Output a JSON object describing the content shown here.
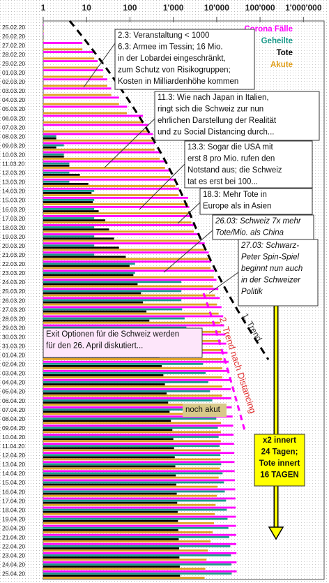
{
  "chart_data": {
    "type": "bar",
    "orientation": "horizontal",
    "log_scale": true,
    "xlim": [
      1,
      3000000
    ],
    "xticks": [
      1,
      10,
      100,
      {
        "value": 1000,
        "label": "1'000"
      },
      {
        "value": 10000,
        "label": "10'000"
      },
      {
        "value": 100000,
        "label": "100'000"
      },
      {
        "value": 1000000,
        "label": "1'000'000"
      }
    ],
    "categories": [
      "25.02.20",
      "26.02.20",
      "27.02.20",
      "28.02.20",
      "29.02.20",
      "01.03.20",
      "02.03.20",
      "03.03.20",
      "04.03.20",
      "05.03.20",
      "06.03.20",
      "07.03.20",
      "08.03.20",
      "09.03.20",
      "10.03.20",
      "11.03.20",
      "12.03.20",
      "13.03.20",
      "14.03.20",
      "15.03.20",
      "16.03.20",
      "17.03.20",
      "18.03.20",
      "19.03.20",
      "20.03.20",
      "21.03.20",
      "22.03.20",
      "23.03.20",
      "24.03.20",
      "25.03.20",
      "26.03.20",
      "27.03.20",
      "28.03.20",
      "29.03.20",
      "30.03.20",
      "31.03.20",
      "01.04.20",
      "02.04.20",
      "03.04.20",
      "04.04.20",
      "05.04.20",
      "06.04.20",
      "07.04.20",
      "08.04.20",
      "09.04.20",
      "10.04.20",
      "11.04.20",
      "12.04.20",
      "13.04.20",
      "14.04.20",
      "15.04.20",
      "16.04.20",
      "17.04.20",
      "18.04.20",
      "19.04.20",
      "20.04.20",
      "21.04.20",
      "22.04.20",
      "23.04.20",
      "24.04.20",
      "25.04.20"
    ],
    "series": [
      {
        "name": "Corona Fälle",
        "color": "#ff00ff",
        "values": [
          1,
          1,
          8,
          15,
          18,
          24,
          30,
          37,
          56,
          86,
          200,
          264,
          337,
          374,
          491,
          652,
          858,
          1125,
          1359,
          2200,
          2330,
          2650,
          3010,
          4075,
          5294,
          6575,
          7474,
          8795,
          9877,
          10897,
          11811,
          12928,
          14076,
          14829,
          15922,
          16605,
          17768,
          18827,
          19606,
          20505,
          21100,
          21657,
          22253,
          23280,
          24051,
          24551,
          25107,
          25415,
          25688,
          25936,
          26336,
          26732,
          27078,
          27404,
          27740,
          27944,
          28063,
          28268,
          28496,
          28677,
          28894
        ]
      },
      {
        "name": "Geheilte",
        "color": "#1a9a8a",
        "values": [
          null,
          null,
          null,
          null,
          null,
          null,
          null,
          null,
          null,
          null,
          1,
          1,
          2,
          3,
          3,
          4,
          4,
          4,
          15,
          15,
          15,
          15,
          15,
          15,
          15,
          15,
          131,
          131,
          1530,
          1530,
          1530,
          1595,
          1823,
          2000,
          2967,
          3400,
          4013,
          4846,
          5549,
          6415,
          7024,
          7915,
          8704,
          9800,
          10600,
          11100,
          11700,
          12100,
          12700,
          13700,
          14700,
          15400,
          16400,
          17100,
          17800,
          18600,
          19500,
          20600,
          21300,
          21800,
          22200
        ]
      },
      {
        "name": "Tote",
        "color": "#000000",
        "values": [
          null,
          null,
          null,
          null,
          null,
          null,
          null,
          null,
          null,
          1,
          1,
          1,
          2,
          2,
          3,
          4,
          7,
          11,
          13,
          14,
          19,
          27,
          33,
          43,
          56,
          80,
          98,
          120,
          150,
          180,
          200,
          240,
          280,
          320,
          370,
          430,
          480,
          540,
          590,
          640,
          700,
          760,
          820,
          880,
          950,
          1000,
          1040,
          1080,
          1110,
          1140,
          1170,
          1200,
          1230,
          1260,
          1280,
          1300,
          1330,
          1360,
          1380,
          1410,
          1430
        ]
      },
      {
        "name": "Akute",
        "color": "#e0a020",
        "values": [
          1,
          1,
          8,
          15,
          18,
          24,
          30,
          37,
          56,
          85,
          198,
          262,
          333,
          369,
          485,
          644,
          847,
          1110,
          1331,
          2171,
          2296,
          2608,
          2962,
          4017,
          5223,
          6480,
          7245,
          8544,
          8197,
          9187,
          10081,
          11093,
          11973,
          12509,
          12585,
          12775,
          13275,
          13441,
          13467,
          13450,
          13376,
          12982,
          12729,
          12600,
          12501,
          12451,
          12367,
          12235,
          11878,
          11096,
          10466,
          10132,
          9448,
          9044,
          8660,
          8044,
          7233,
          6308,
          5816,
          5467,
          5264
        ]
      }
    ],
    "legend": "top-right",
    "annotations": [
      {
        "lines": [
          "2.3: Veranstaltung < 1000",
          "6.3: Armee im Tessin; 16 Mio.",
          "in der Lobardei eingeschränkt,",
          "zum Schutz von Risikogruppen;",
          "Kosten in Milliardenhöhe kommen"
        ],
        "color": "#111111"
      },
      {
        "lines": [
          "11.3: Wie nach Japan in Italien,",
          "ringt sich die Schweiz zur nun",
          "ehrlichen Darstellung der Realität",
          "und zu Social Distancing durch..."
        ],
        "color": "#111111"
      },
      {
        "lines": [
          "13.3: Sogar die USA mit",
          "erst 8 pro Mio. rufen den",
          "Notstand aus; die Schweiz",
          "tat es erst bei 100..."
        ],
        "color": "#111111"
      },
      {
        "lines": [
          "18.3: Mehr Tote in",
          "Europe als in Asien"
        ],
        "color": "#111111"
      },
      {
        "lines": [
          "26.03: Schweiz 7x mehr",
          "Tote/Mio. als China"
        ],
        "color": "#e00000"
      },
      {
        "lines": [
          "27.03: Schwarz-",
          "Peter Spin-Spiel",
          "beginnt nun auch",
          "in der Schweizer",
          "Politik"
        ],
        "color": "#e00000"
      },
      {
        "lines": [
          "Exit Optionen für die Schweiz werden",
          "für den 26. April diskutiert..."
        ],
        "color": "#111111"
      },
      {
        "lines": [
          "noch akut"
        ],
        "color": "#333333"
      },
      {
        "lines": [
          "x2 innert",
          "24 Tagen;",
          "Tote innert",
          "16 TAGEN"
        ],
        "color": "#111111"
      }
    ],
    "trend_labels": [
      "1. Trend.",
      "2. Trend nach Distancing"
    ]
  }
}
